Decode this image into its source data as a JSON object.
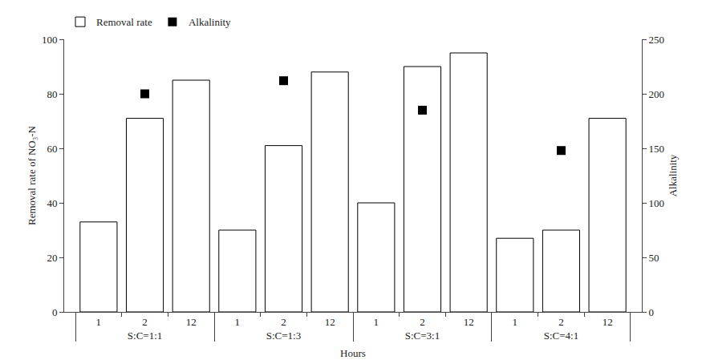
{
  "chart_data": {
    "type": "bar",
    "categories": [
      [
        "S:C=1:1",
        "1"
      ],
      [
        "S:C=1:1",
        "2"
      ],
      [
        "S:C=1:1",
        "12"
      ],
      [
        "S:C=1:3",
        "1"
      ],
      [
        "S:C=1:3",
        "2"
      ],
      [
        "S:C=1:3",
        "12"
      ],
      [
        "S:C=3:1",
        "1"
      ],
      [
        "S:C=3:1",
        "2"
      ],
      [
        "S:C=3:1",
        "12"
      ],
      [
        "S:C=4:1",
        "1"
      ],
      [
        "S:C=4:1",
        "2"
      ],
      [
        "S:C=4:1",
        "12"
      ]
    ],
    "series": [
      {
        "name": "Removal rate",
        "type": "bar",
        "color": "white",
        "axis": "y",
        "values": [
          33,
          71,
          85,
          30,
          61,
          88,
          40,
          90,
          95,
          27,
          30,
          71
        ]
      },
      {
        "name": "Alkalinity",
        "type": "scatter",
        "marker": "square",
        "color": "black",
        "axis": "y2",
        "values": [
          null,
          200,
          null,
          null,
          212,
          null,
          null,
          185,
          null,
          null,
          148,
          null
        ]
      }
    ],
    "xlabel": "Hours",
    "ylabel": "Removal rate of NO₃-N",
    "y2label": "Alkalinity",
    "ylim": [
      0,
      100
    ],
    "yticks": [
      0,
      20,
      40,
      60,
      80,
      100
    ],
    "y2lim": [
      0,
      250
    ],
    "y2ticks": [
      0,
      50,
      100,
      150,
      200,
      250
    ],
    "grid": false,
    "legend": "upper left"
  }
}
